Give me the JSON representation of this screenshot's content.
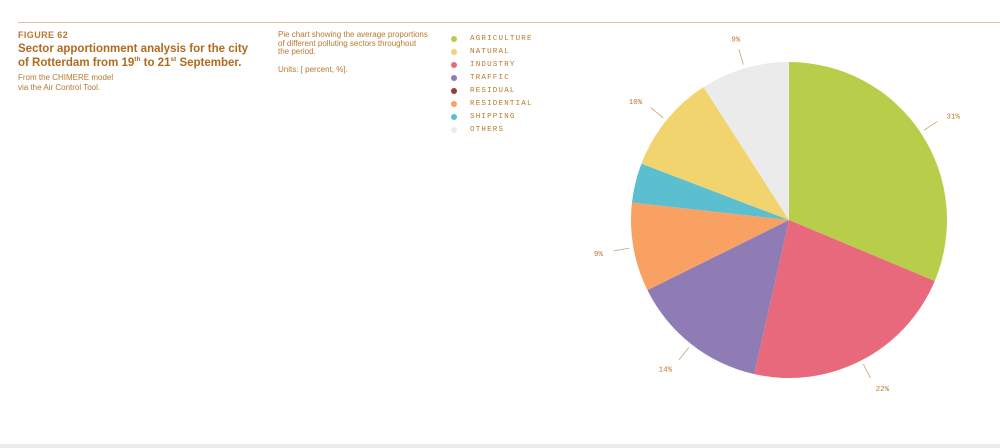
{
  "figure": {
    "label": "FIGURE 62",
    "title_parts": [
      "Sector apportionment analysis for the city of Rotterdam from 19",
      "th",
      " to 21",
      "st",
      " September."
    ],
    "source_line1": "From the CHIMERE model",
    "source_line2": "via the Air Control Tool."
  },
  "description": {
    "text": "Pie chart showing the average proportions of different polluting sectors throughout the period.",
    "units": "Units: [ percent, %]."
  },
  "colors": {
    "accent": "#b8792e",
    "title": "#b06a1e",
    "rule": "#e0c39c"
  },
  "chart_data": {
    "type": "pie",
    "start": "12 o'clock",
    "direction": "clockwise",
    "legend_position": "top-left",
    "slices": [
      {
        "name": "AGRICULTURE",
        "value": 31,
        "label": "31%",
        "color": "#b8cd4a"
      },
      {
        "name": "INDUSTRY",
        "value": 22,
        "label": "22%",
        "color": "#e8697c"
      },
      {
        "name": "TRAFFIC",
        "value": 14,
        "label": "14%",
        "color": "#8f7cb5"
      },
      {
        "name": "RESIDENTIAL",
        "value": 9,
        "label": "9%",
        "color": "#f9a162"
      },
      {
        "name": "SHIPPING",
        "value": 4,
        "label": "",
        "color": "#5bbfd0"
      },
      {
        "name": "NATURAL",
        "value": 10,
        "label": "10%",
        "color": "#f2d46e"
      },
      {
        "name": "OTHERS",
        "value": 9,
        "label": "9%",
        "color": "#ebebeb"
      }
    ],
    "legend": [
      {
        "name": "AGRICULTURE",
        "color": "#b8cd4a"
      },
      {
        "name": "NATURAL",
        "color": "#f2d46e"
      },
      {
        "name": "INDUSTRY",
        "color": "#e8697c"
      },
      {
        "name": "TRAFFIC",
        "color": "#8f7cb5"
      },
      {
        "name": "RESIDUAL",
        "color": "#9d3a32"
      },
      {
        "name": "RESIDENTIAL",
        "color": "#f9a162"
      },
      {
        "name": "SHIPPING",
        "color": "#5bbfd0"
      },
      {
        "name": "OTHERS",
        "color": "#ebebeb"
      }
    ]
  }
}
